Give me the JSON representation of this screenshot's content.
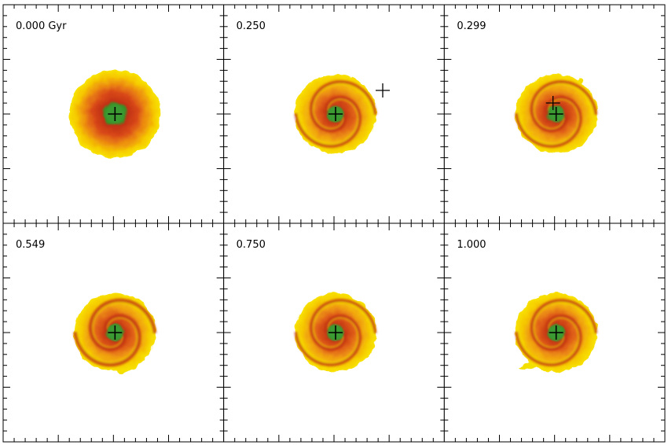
{
  "figure": {
    "panels": [
      {
        "label": "0.000 Gyr",
        "companion": false,
        "morphology": "smooth-disk",
        "tail": "none"
      },
      {
        "label": "0.250",
        "companion": true,
        "companion_position": "outside-upper-right",
        "morphology": "spiral",
        "tail": "none"
      },
      {
        "label": "0.299",
        "companion": true,
        "companion_position": "near-center",
        "morphology": "spiral",
        "tail": "small-upper-right"
      },
      {
        "label": "0.549",
        "companion": false,
        "morphology": "strong-spiral",
        "tail": "lower-right"
      },
      {
        "label": "0.750",
        "companion": false,
        "morphology": "spiral",
        "tail": "none"
      },
      {
        "label": "1.000",
        "companion": false,
        "morphology": "spiral",
        "tail": "lower-left"
      }
    ],
    "colors": {
      "outer": "#f4e000",
      "mid": "#f0a800",
      "inner": "#e05010",
      "core": "#c03010",
      "nucleus": "#3a9a30",
      "marker": "#000000"
    }
  }
}
